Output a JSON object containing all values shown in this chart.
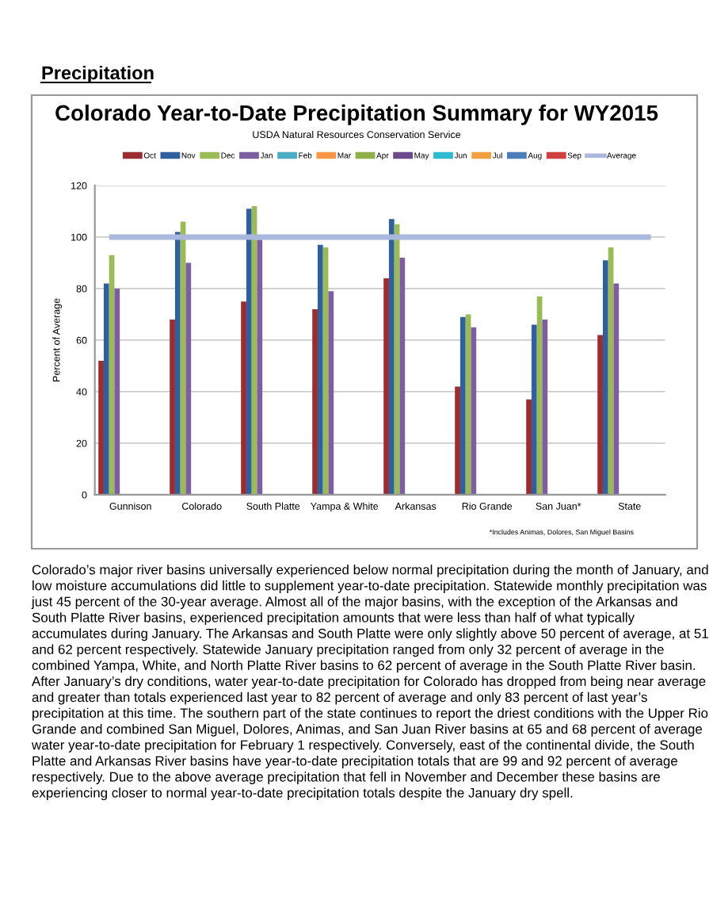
{
  "chart_data": {
    "type": "bar",
    "title": "Colorado Year-to-Date Precipitation Summary for WY2015",
    "subtitle": "USDA Natural Resources Conservation Service",
    "ylabel": "Percent of Average",
    "categories": [
      "Gunnison",
      "Colorado",
      "South Platte",
      "Yampa & White",
      "Arkansas",
      "Rio Grande",
      "San Juan*",
      "State"
    ],
    "series": [
      {
        "name": "Oct",
        "color": "#9b2d30",
        "values": [
          52,
          68,
          75,
          72,
          84,
          42,
          37,
          62
        ]
      },
      {
        "name": "Nov",
        "color": "#2f5f9e",
        "values": [
          82,
          102,
          111,
          97,
          107,
          69,
          66,
          91
        ]
      },
      {
        "name": "Dec",
        "color": "#9bbb59",
        "values": [
          93,
          106,
          112,
          96,
          105,
          70,
          77,
          96
        ]
      },
      {
        "name": "Jan",
        "color": "#7d5fa0",
        "values": [
          80,
          90,
          99,
          79,
          92,
          65,
          68,
          82
        ]
      },
      {
        "name": "Feb",
        "color": "#4bacc6",
        "values": [
          null,
          null,
          null,
          null,
          null,
          null,
          null,
          null
        ]
      },
      {
        "name": "Mar",
        "color": "#f79646",
        "values": [
          null,
          null,
          null,
          null,
          null,
          null,
          null,
          null
        ]
      },
      {
        "name": "Apr",
        "color": "#8fb04a",
        "values": [
          null,
          null,
          null,
          null,
          null,
          null,
          null,
          null
        ]
      },
      {
        "name": "May",
        "color": "#6a4a8c",
        "values": [
          null,
          null,
          null,
          null,
          null,
          null,
          null,
          null
        ]
      },
      {
        "name": "Jun",
        "color": "#2fbad0",
        "values": [
          null,
          null,
          null,
          null,
          null,
          null,
          null,
          null
        ]
      },
      {
        "name": "Jul",
        "color": "#f0a040",
        "values": [
          null,
          null,
          null,
          null,
          null,
          null,
          null,
          null
        ]
      },
      {
        "name": "Aug",
        "color": "#4a7ebb",
        "values": [
          null,
          null,
          null,
          null,
          null,
          null,
          null,
          null
        ]
      },
      {
        "name": "Sep",
        "color": "#d04040",
        "values": [
          null,
          null,
          null,
          null,
          null,
          null,
          null,
          null
        ]
      }
    ],
    "ref_lines": [
      {
        "axis": "y",
        "value": 100,
        "label": "Average",
        "color": "#a9b8dc"
      }
    ],
    "ylim": [
      0,
      120
    ],
    "yticks": [
      0,
      20,
      40,
      60,
      80,
      100,
      120
    ],
    "grid": "y",
    "legend": "top",
    "annotations": [
      "Precipitation",
      "*Includes Animas, Dolores, San Miguel Basins",
      "Colorado’s major river basins universally experienced below normal precipitation during the month of January, and low moisture accumulations did little to supplement year-to-date precipitation. Statewide monthly precipitation was just 45 percent of the 30-year average. Almost all of the major basins, with the exception of the Arkansas and South Platte River basins, experienced precipitation amounts that were less than half of what typically accumulates during January. The Arkansas and South Platte were only slightly above 50 percent of average, at 51 and 62 percent respectively. Statewide January precipitation ranged from only 32 percent of average in the combined Yampa, White, and North Platte River basins to 62 percent of average in the South Platte River basin. After January’s dry conditions, water year-to-date precipitation for Colorado has dropped from being near average and greater than totals experienced last year to 82 percent of average and only 83 percent of last year’s precipitation at this time. The southern part of the state continues to report the driest conditions with the Upper Rio Grande and combined San Miguel, Dolores, Animas, and San Juan River basins at 65 and 68 percent of average water year-to-date precipitation for February 1 respectively. Conversely, east of the continental divide, the South Platte and Arkansas River basins have year-to-date precipitation totals that are 99 and 92 percent of average respectively. Due to the above average precipitation that fell in November and December these basins are experiencing closer to normal year-to-date precipitation totals despite the January dry spell."
    ]
  }
}
